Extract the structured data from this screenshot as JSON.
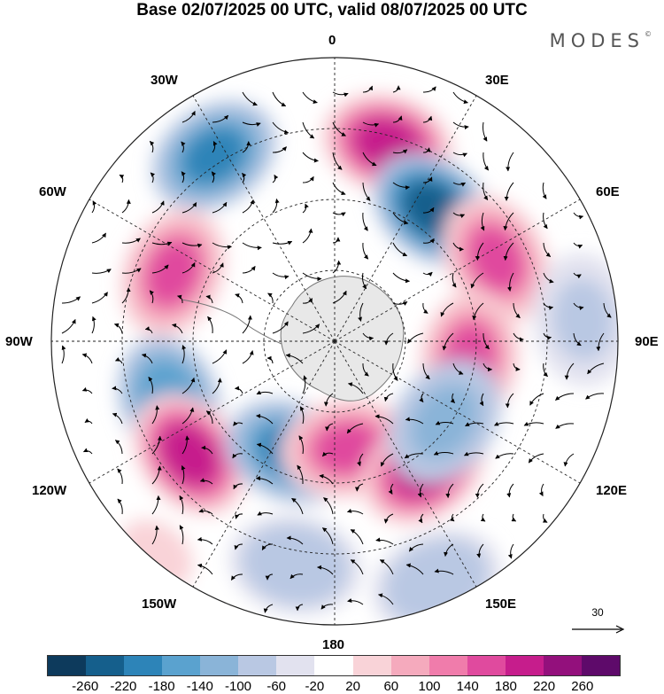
{
  "title": "Base 02/07/2025 00 UTC, valid 08/07/2025 00 UTC",
  "brand": "MODES",
  "brand_mark": "©",
  "longitude_labels": {
    "lon_0": "0",
    "lon_30e": "30E",
    "lon_60e": "60E",
    "lon_90e": "90E",
    "lon_120e": "120E",
    "lon_150e": "150E",
    "lon_180": "180",
    "lon_150w": "150W",
    "lon_120w": "120W",
    "lon_90w": "90W",
    "lon_60w": "60W",
    "lon_30w": "30W"
  },
  "reference_vector": {
    "value": "30"
  },
  "colorbar": {
    "colors": [
      "#0d3a5c",
      "#155f8c",
      "#2d84b8",
      "#5aa2cf",
      "#8ab4d8",
      "#b9c8e3",
      "#e2e2ef",
      "#ffffff",
      "#f9d3d8",
      "#f5aabd",
      "#f07cab",
      "#e04a9e",
      "#c61d8c",
      "#93107c",
      "#5e0a6a"
    ],
    "ticks": [
      "-260",
      "-220",
      "-180",
      "-140",
      "-100",
      "-60",
      "-20",
      "20",
      "60",
      "100",
      "140",
      "180",
      "220",
      "260"
    ]
  },
  "anomaly_centers": [
    {
      "lon": 15,
      "colat": 0.72,
      "value": 220
    },
    {
      "lon": -33,
      "colat": 0.78,
      "value": -180
    },
    {
      "lon": 37,
      "colat": 0.58,
      "value": -220
    },
    {
      "lon": 63,
      "colat": 0.64,
      "value": 180
    },
    {
      "lon": 97,
      "colat": 0.48,
      "value": 160
    },
    {
      "lon": -67,
      "colat": 0.62,
      "value": 160
    },
    {
      "lon": -110,
      "colat": 0.62,
      "value": -160
    },
    {
      "lon": -128,
      "colat": 0.65,
      "value": 200
    },
    {
      "lon": -158,
      "colat": 0.42,
      "value": -180
    },
    {
      "lon": 173,
      "colat": 0.38,
      "value": 160
    },
    {
      "lon": 145,
      "colat": 0.55,
      "value": 200
    },
    {
      "lon": 126,
      "colat": 0.48,
      "value": -120
    },
    {
      "lon": -140,
      "colat": 0.98,
      "value": 60
    },
    {
      "lon": 157,
      "colat": 0.92,
      "value": -80
    },
    {
      "lon": -170,
      "colat": 0.8,
      "value": -80
    },
    {
      "lon": 85,
      "colat": 0.88,
      "value": -60
    }
  ]
}
